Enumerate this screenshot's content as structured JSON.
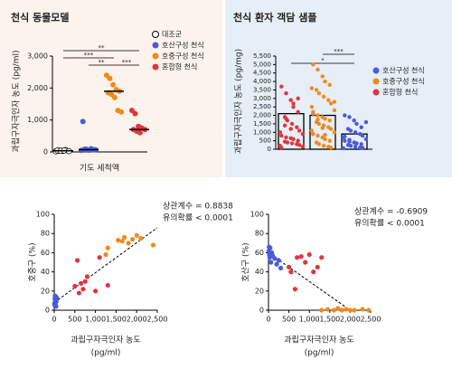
{
  "chart_data": [
    {
      "type": "strip",
      "title": "천식 동물모델",
      "y_label": "과립구자극인자 농도 (pg/ml)",
      "x_label": "기도 세척액",
      "ylim": [
        0,
        3000
      ],
      "yticks": [
        0,
        {
          "value": 1000,
          "label": "1,000"
        },
        {
          "value": 2000,
          "label": "2,000"
        },
        {
          "value": 3000,
          "label": "3,000"
        }
      ],
      "series": [
        {
          "name": "대조군",
          "color": "#ffffff",
          "values": [
            20,
            40,
            30,
            60,
            25,
            50,
            35,
            45
          ],
          "median": 35
        },
        {
          "name": "호산구성 천식",
          "color": "#4a5bdc",
          "values": [
            50,
            80,
            60,
            100,
            70,
            950,
            90,
            55,
            75,
            65
          ],
          "median": 70
        },
        {
          "name": "호중구성 천식",
          "color": "#f08a1c",
          "values": [
            2400,
            2300,
            2100,
            1950,
            1900,
            1850,
            1800,
            1700,
            1300,
            1250
          ],
          "median": 1900
        },
        {
          "name": "혼합형 천식",
          "color": "#e0353d",
          "values": [
            1300,
            1200,
            800,
            750,
            700,
            700,
            650,
            600
          ],
          "median": 700
        }
      ],
      "significance": [
        {
          "label": "**",
          "groups": [
            0,
            3
          ]
        },
        {
          "label": "***",
          "groups": [
            0,
            2
          ]
        },
        {
          "label": "**",
          "groups": [
            1,
            2
          ]
        },
        {
          "label": "***",
          "groups": [
            2,
            3
          ]
        }
      ]
    },
    {
      "type": "bar",
      "title": "천식 환자 객담 샘플",
      "y_label": "과립구자극인자 농도 (pg/mg)",
      "ylim": [
        0,
        5500
      ],
      "yticks": [
        0,
        500,
        {
          "value": 1000,
          "label": "1,000"
        },
        {
          "value": 1500,
          "label": "1,500"
        },
        {
          "value": 2000,
          "label": "2,000"
        },
        {
          "value": 2500,
          "label": "2,500"
        },
        {
          "value": 3000,
          "label": "3,000"
        },
        {
          "value": 3500,
          "label": "3,500"
        },
        {
          "value": 4000,
          "label": "4,000"
        },
        {
          "value": 4500,
          "label": "4,500"
        },
        {
          "value": 5000,
          "label": "5,000"
        },
        {
          "value": 5500,
          "label": "5,500"
        }
      ],
      "series": [
        {
          "name": "호산구성 천식",
          "color": "#4a5bdc",
          "bar": 900,
          "values": [
            2000,
            1900,
            1700,
            1500,
            1300,
            1200,
            1100,
            1000,
            900,
            800,
            700,
            600,
            500,
            450,
            400,
            350,
            300,
            250,
            200,
            150,
            100,
            80,
            60,
            1600,
            750,
            550
          ]
        },
        {
          "name": "호중구성 천식",
          "color": "#f08a1c",
          "bar": 2000,
          "values": [
            5000,
            4700,
            4300,
            4000,
            3800,
            3500,
            3300,
            3100,
            2900,
            2700,
            2500,
            2300,
            2100,
            2000,
            1900,
            1800,
            1700,
            1600,
            1500,
            1400,
            1300,
            1200,
            1100,
            1000,
            900,
            800,
            700,
            600,
            500,
            400,
            300,
            200,
            150,
            100,
            3600,
            2800,
            2200,
            1750,
            1250,
            850
          ]
        },
        {
          "name": "혼합형 천식",
          "color": "#e0353d",
          "bar": 2100,
          "values": [
            3700,
            3300,
            2900,
            2500,
            2200,
            1900,
            1700,
            1500,
            1300,
            1100,
            1000,
            900,
            800,
            700,
            650,
            600,
            500,
            450,
            400,
            350,
            300,
            250,
            200,
            150,
            100,
            1800,
            1200,
            2700,
            3000,
            1400
          ]
        }
      ],
      "significance": [
        {
          "label": "***",
          "groups": [
            0,
            1
          ]
        },
        {
          "label": "*",
          "groups": [
            0,
            2
          ]
        }
      ]
    },
    {
      "type": "scatter",
      "y_label": "호중구 (%)",
      "x_label": [
        "과립구자극인자 농도",
        "(pg/ml)"
      ],
      "annotations": [
        "상관계수 = 0.8838",
        "유의확률 < 0.0001"
      ],
      "xlim": [
        0,
        2500
      ],
      "ylim": [
        0,
        100
      ],
      "xticks": [
        0,
        500,
        {
          "value": 1000,
          "label": "1,000"
        },
        {
          "value": 1500,
          "label": "1,500"
        },
        {
          "value": 2000,
          "label": "2,000"
        },
        {
          "value": 2500,
          "label": "2,500"
        }
      ],
      "yticks": [
        0,
        20,
        40,
        60,
        80,
        100
      ],
      "trend_x": [
        0,
        2500
      ],
      "trend_y": [
        8,
        86
      ],
      "series": [
        {
          "color": "#4a5bdc",
          "x": [
            10,
            20,
            30,
            15,
            40,
            25,
            50,
            35,
            5,
            60,
            45,
            20
          ],
          "y": [
            5,
            8,
            10,
            12,
            14,
            6,
            9,
            11,
            7,
            13,
            4,
            15
          ]
        },
        {
          "color": "#e0353d",
          "x": [
            500,
            560,
            600,
            650,
            700,
            750,
            1000,
            1100,
            1300,
            800
          ],
          "y": [
            25,
            52,
            18,
            28,
            22,
            30,
            20,
            55,
            26,
            35
          ]
        },
        {
          "color": "#f08a1c",
          "x": [
            1250,
            1300,
            1650,
            1700,
            1800,
            1900,
            2000,
            2100,
            2400,
            1550
          ],
          "y": [
            58,
            65,
            72,
            76,
            70,
            74,
            78,
            75,
            68,
            73
          ]
        }
      ]
    },
    {
      "type": "scatter",
      "y_label": "호산구 (%)",
      "x_label": [
        "과립구자극인자 농도",
        "(pg/ml)"
      ],
      "annotations": [
        "상관계수 = -0.6909",
        "유의확률 < 0.0001"
      ],
      "xlim": [
        0,
        2500
      ],
      "ylim": [
        0,
        100
      ],
      "xticks": [
        0,
        500,
        {
          "value": 1000,
          "label": "1,000"
        },
        {
          "value": 1500,
          "label": "1,500"
        },
        {
          "value": 2000,
          "label": "2,000"
        },
        {
          "value": 2500,
          "label": "2,500"
        }
      ],
      "yticks": [
        0,
        20,
        40,
        60,
        80,
        100
      ],
      "trend_x": [
        0,
        2000
      ],
      "trend_y": [
        60,
        0
      ],
      "series": [
        {
          "color": "#4a5bdc",
          "x": [
            10,
            20,
            30,
            40,
            60,
            80,
            100,
            150,
            200,
            250,
            300,
            15
          ],
          "y": [
            62,
            58,
            55,
            65,
            50,
            60,
            57,
            54,
            48,
            52,
            44,
            66
          ]
        },
        {
          "color": "#e0353d",
          "x": [
            500,
            550,
            650,
            700,
            800,
            900,
            1000,
            1100,
            1200,
            1300
          ],
          "y": [
            45,
            40,
            22,
            55,
            56,
            50,
            58,
            40,
            45,
            55
          ]
        },
        {
          "color": "#f08a1c",
          "x": [
            1300,
            1450,
            1600,
            1700,
            1800,
            1900,
            2000,
            2100,
            2300,
            2450
          ],
          "y": [
            0,
            1,
            0,
            2,
            0,
            1,
            0,
            0,
            1,
            0
          ]
        }
      ]
    }
  ]
}
